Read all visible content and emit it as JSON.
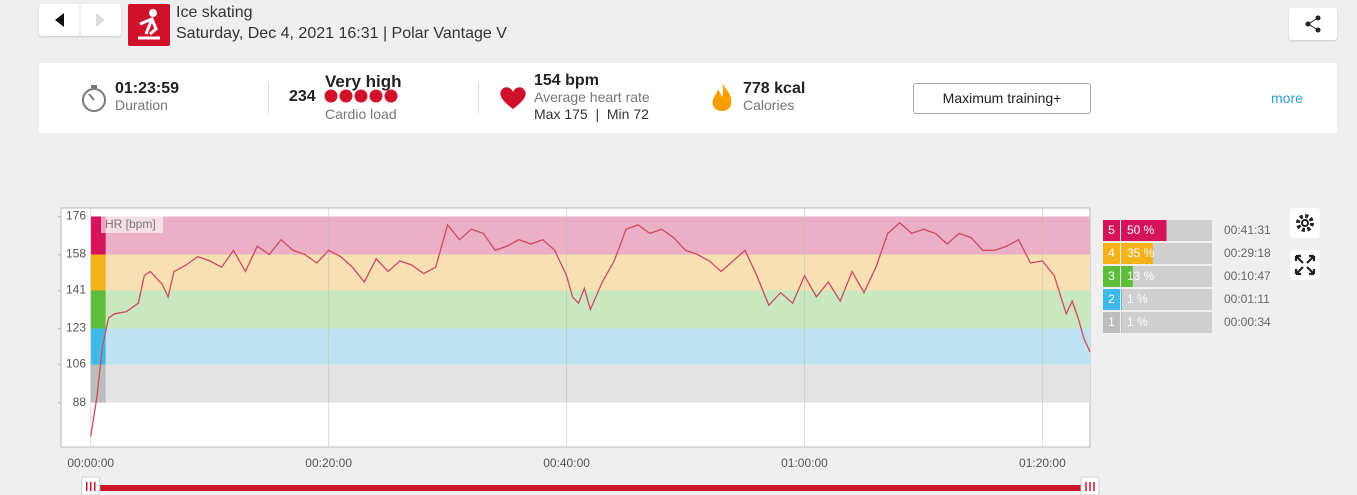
{
  "header": {
    "title": "Ice skating",
    "subtitle": "Saturday, Dec 4, 2021 16:31 | Polar Vantage V"
  },
  "summary": {
    "duration": {
      "value": "01:23:59",
      "label": "Duration"
    },
    "cardio": {
      "score": "234",
      "level": "Very high",
      "label": "Cardio load"
    },
    "heart_rate": {
      "value": "154 bpm",
      "label": "Average heart rate",
      "range": "Max 175  |  Min 72"
    },
    "calories": {
      "value": "778 kcal",
      "label": "Calories"
    },
    "button": "Maximum training+",
    "more": "more"
  },
  "chart_data": {
    "type": "line",
    "y_label": "HR [bpm]",
    "color": "#d2495f",
    "x": [
      0,
      0.5,
      1,
      1.5,
      2,
      3,
      4,
      4.5,
      5,
      6,
      6.5,
      7,
      8,
      9,
      10,
      11,
      12,
      13,
      14,
      15,
      16,
      17,
      18,
      19,
      20,
      21,
      22,
      23,
      24,
      25,
      26,
      27,
      28,
      29,
      30,
      31,
      32,
      33,
      34,
      35,
      36,
      37,
      38,
      39,
      40,
      40.5,
      41,
      41.5,
      42,
      43,
      44,
      45,
      46,
      47,
      48,
      49,
      50,
      51,
      52,
      53,
      54,
      55,
      56,
      57,
      58,
      59,
      60,
      61,
      62,
      63,
      64,
      65,
      66,
      67,
      68,
      69,
      70,
      71,
      72,
      73,
      74,
      75,
      76,
      77,
      78,
      79,
      80,
      81,
      82,
      82.5,
      83,
      83.5,
      84
    ],
    "values": [
      72,
      90,
      115,
      128,
      130,
      131,
      135,
      148,
      150,
      144,
      138,
      150,
      153,
      157,
      155,
      152,
      160,
      150,
      162,
      158,
      165,
      160,
      158,
      154,
      160,
      157,
      152,
      145,
      156,
      150,
      155,
      153,
      149,
      152,
      172,
      165,
      170,
      168,
      160,
      162,
      165,
      163,
      165,
      160,
      148,
      138,
      135,
      142,
      132,
      145,
      155,
      170,
      172,
      168,
      170,
      166,
      160,
      158,
      155,
      150,
      155,
      160,
      148,
      134,
      140,
      135,
      148,
      138,
      145,
      136,
      150,
      140,
      152,
      168,
      173,
      168,
      170,
      168,
      163,
      168,
      166,
      160,
      160,
      162,
      165,
      154,
      155,
      148,
      130,
      136,
      128,
      118,
      112
    ],
    "xlim": [
      -2.5,
      84
    ],
    "xticks": [
      {
        "value": 0,
        "label": "00:00:00"
      },
      {
        "value": 20,
        "label": "00:20:00"
      },
      {
        "value": 40,
        "label": "00:40:00"
      },
      {
        "value": 60,
        "label": "01:00:00"
      },
      {
        "value": 80,
        "label": "01:20:00"
      }
    ],
    "ylim": [
      67,
      180
    ],
    "yticks": [
      88,
      106,
      123,
      141,
      158,
      176
    ],
    "zones": {
      "names": [
        "5",
        "4",
        "3",
        "2",
        "1"
      ],
      "lower": [
        158,
        141,
        123,
        106,
        88
      ],
      "upper": [
        176,
        158,
        141,
        123,
        106
      ],
      "values": [
        50,
        35,
        13,
        1,
        1
      ],
      "value_labels": [
        "50 %",
        "35 %",
        "13 %",
        "1 %",
        "1 %"
      ],
      "times": [
        "00:41:31",
        "00:29:18",
        "00:10:47",
        "00:01:11",
        "00:00:34"
      ],
      "colors": [
        "#d5135b",
        "#f5b21b",
        "#5ebd3a",
        "#3fb9e8",
        "#bdbdbd"
      ],
      "band_colors": [
        "#ebb0c5",
        "#f7e0b3",
        "#cae8c0",
        "#c0e3f1",
        "#e3e3e3"
      ]
    }
  }
}
